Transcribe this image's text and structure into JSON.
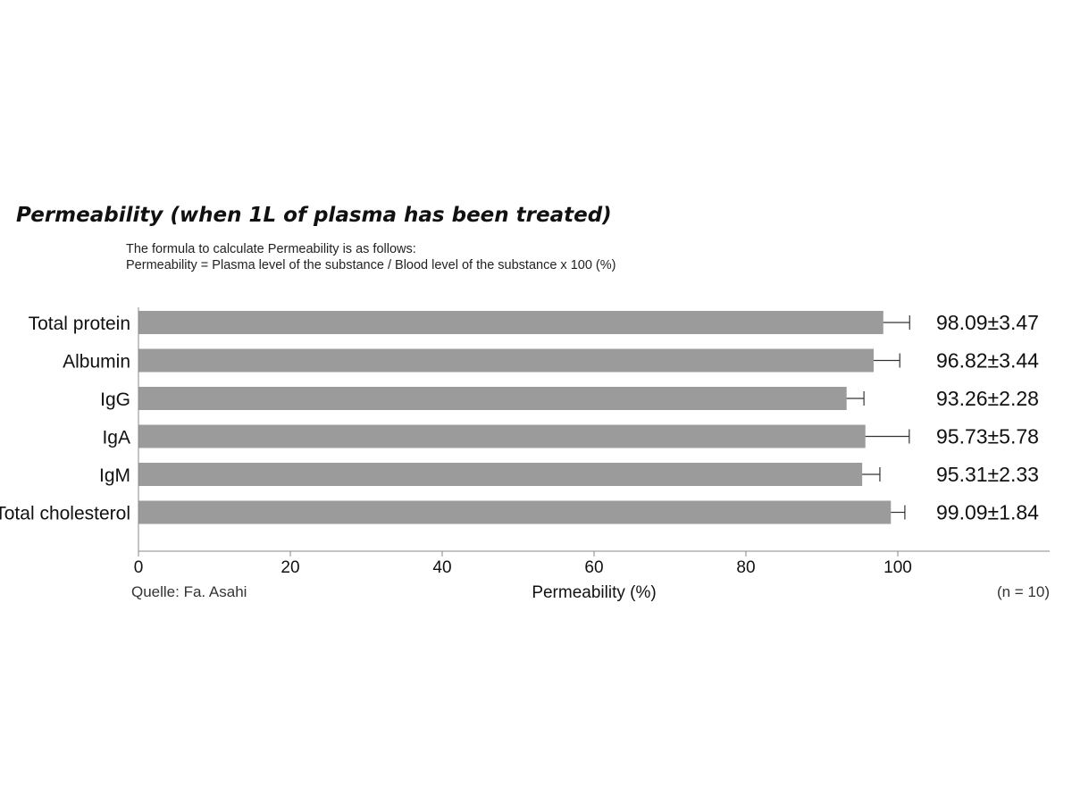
{
  "header": {
    "title": "Permeability (when 1L of plasma has been treated)",
    "formula_line1": "The formula to calculate Permeability is as follows:",
    "formula_line2": "Permeability = Plasma level of the substance / Blood level of the substance x 100 (%)"
  },
  "chart_data": {
    "type": "bar",
    "orientation": "horizontal",
    "categories": [
      "Total protein",
      "Albumin",
      "IgG",
      "IgA",
      "IgM",
      "Total cholesterol"
    ],
    "values": [
      98.09,
      96.82,
      93.26,
      95.73,
      95.31,
      99.09
    ],
    "errors": [
      3.47,
      3.44,
      2.28,
      5.78,
      2.33,
      1.84
    ],
    "value_labels": [
      "98.09±3.47",
      "96.82±3.44",
      "93.26±2.28",
      "95.73±5.78",
      "95.31±2.33",
      "99.09±1.84"
    ],
    "xlabel": "Permeability (%)",
    "xlim": [
      0,
      120
    ],
    "xticks": [
      "0",
      "20",
      "40",
      "60",
      "80",
      "100"
    ],
    "grid": false,
    "bar_color": "#9b9b9b",
    "source": "Quelle: Fa. Asahi",
    "note": "(n = 10)"
  }
}
